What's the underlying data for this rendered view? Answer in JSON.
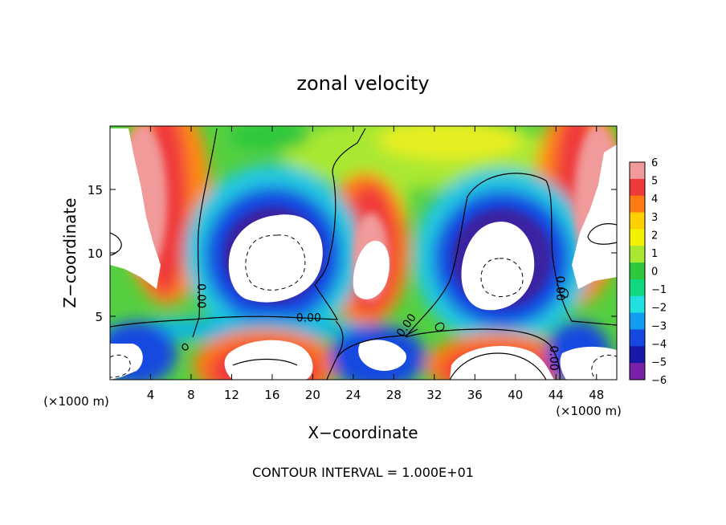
{
  "chart_data": {
    "type": "heatmap",
    "title": "zonal velocity",
    "xlabel": "X−coordinate",
    "ylabel": "Z−coordinate",
    "x_unit_left": "(×1000 m)",
    "x_unit_right": "(×1000 m)",
    "xlim": [
      0,
      50
    ],
    "ylim": [
      0,
      20
    ],
    "xticks": [
      4,
      8,
      12,
      16,
      20,
      24,
      28,
      32,
      36,
      40,
      44,
      48
    ],
    "yticks": [
      5,
      10,
      15
    ],
    "footer": "CONTOUR INTERVAL = 1.000E+01",
    "colorbar": {
      "ticks": [
        "6",
        "5",
        "4",
        "3",
        "2",
        "1",
        "0",
        "−1",
        "−2",
        "−3",
        "−4",
        "−5",
        "−6"
      ],
      "colors": [
        "#f09a9a",
        "#f03a3a",
        "#ff7a10",
        "#ffd000",
        "#f2f200",
        "#a8e830",
        "#2ec83c",
        "#10d880",
        "#20e0e0",
        "#109cf0",
        "#1448e0",
        "#1818a8",
        "#7a20a8"
      ]
    },
    "contour_labels": [
      {
        "text": "0.00",
        "x": 19.6,
        "z": 4.7
      },
      {
        "text": "0.00",
        "x": 8.8,
        "z": 6.6
      },
      {
        "text": "0.00",
        "x": 29.4,
        "z": 4.2
      },
      {
        "text": "0.00",
        "x": 44.2,
        "z": 7.2
      },
      {
        "text": "0.00",
        "x": 43.6,
        "z": 1.7
      }
    ],
    "field_features": [
      {
        "kind": "max",
        "x": 5,
        "z": 12,
        "value": 6
      },
      {
        "kind": "min",
        "x": 15.5,
        "z": 9.5,
        "value": -6
      },
      {
        "kind": "max",
        "x": 26,
        "z": 9,
        "value": 6
      },
      {
        "kind": "min",
        "x": 38.5,
        "z": 8.5,
        "value": -6
      },
      {
        "kind": "max",
        "x": 47,
        "z": 12,
        "value": 6
      },
      {
        "kind": "max",
        "x": 16,
        "z": 1.5,
        "value": 6
      },
      {
        "kind": "min",
        "x": 26,
        "z": 2.2,
        "value": -6
      },
      {
        "kind": "max",
        "x": 38,
        "z": 0.8,
        "value": 6
      },
      {
        "kind": "min",
        "x": 2,
        "z": 2,
        "value": -6
      }
    ]
  }
}
